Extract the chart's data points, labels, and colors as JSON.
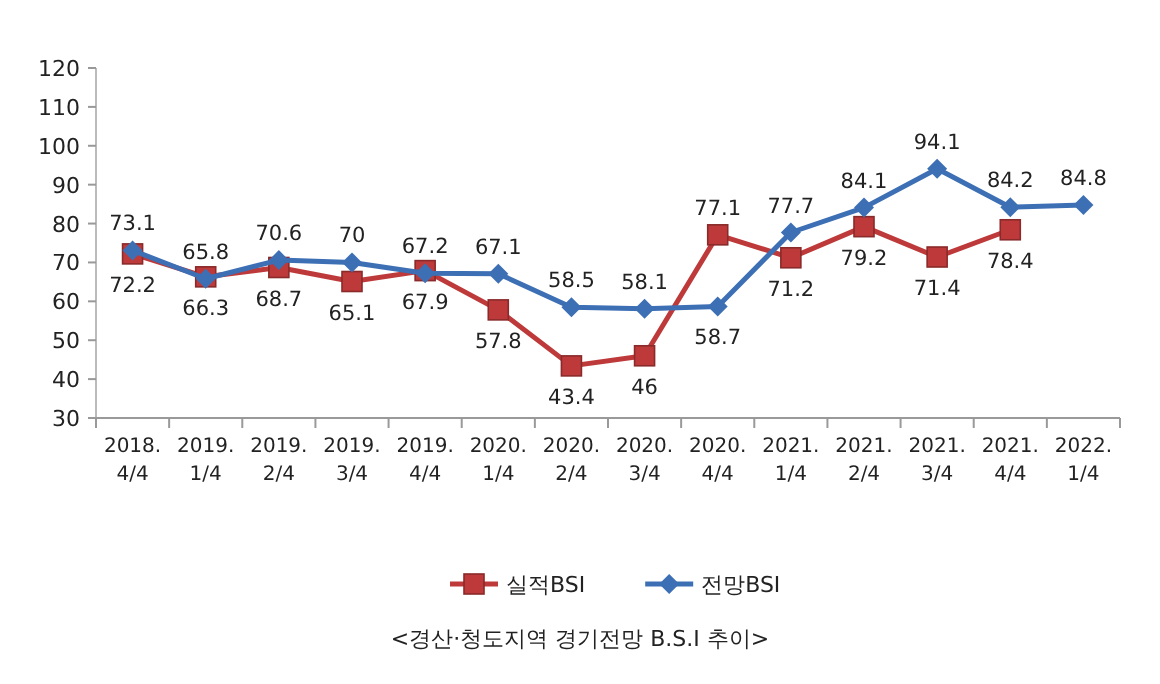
{
  "chart_data": {
    "type": "line",
    "categories": [
      "2018. 4/4",
      "2019. 1/4",
      "2019. 2/4",
      "2019. 3/4",
      "2019. 4/4",
      "2020. 1/4",
      "2020. 2/4",
      "2020. 3/4",
      "2020. 4/4",
      "2021. 1/4",
      "2021. 2/4",
      "2021. 3/4",
      "2021. 4/4",
      "2022. 1/4"
    ],
    "series": [
      {
        "name": "실적BSI",
        "color": "#be3a3a",
        "marker": "square",
        "values": [
          72.2,
          66.3,
          68.7,
          65.1,
          67.9,
          57.8,
          43.4,
          46,
          77.1,
          71.2,
          79.2,
          71.4,
          78.4,
          null
        ]
      },
      {
        "name": "전망BSI",
        "color": "#3d6fb5",
        "marker": "diamond",
        "values": [
          73.1,
          65.8,
          70.6,
          70,
          67.2,
          67.1,
          58.5,
          58.1,
          58.7,
          77.7,
          84.1,
          94.1,
          84.2,
          84.8
        ]
      }
    ],
    "ylim": [
      30,
      120
    ],
    "yticks": [
      30,
      40,
      50,
      60,
      70,
      80,
      90,
      100,
      110,
      120
    ],
    "data_labels": true,
    "legend": "bottom",
    "grid": false,
    "annotations": [
      "<경산·청도지역 경기전망 B.S.I 추이>"
    ]
  }
}
